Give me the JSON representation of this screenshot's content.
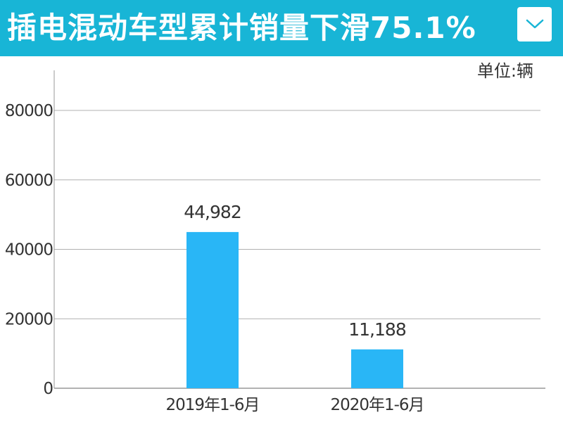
{
  "header": {
    "title": "插电混动车型累计销量下滑75.1%",
    "background_color": "#18b5d6",
    "dropdown_icon": "chevron-down-icon"
  },
  "chart_data": {
    "type": "bar",
    "unit_label": "单位:辆",
    "categories": [
      "2019年1-6月",
      "2020年1-6月"
    ],
    "values": [
      44982,
      11188
    ],
    "data_labels": [
      "44,982",
      "11,188"
    ],
    "yticks": [
      "0",
      "20000",
      "40000",
      "60000",
      "80000"
    ],
    "ylim": [
      0,
      90000
    ],
    "grid": true,
    "bar_color": "#29b6f6"
  }
}
